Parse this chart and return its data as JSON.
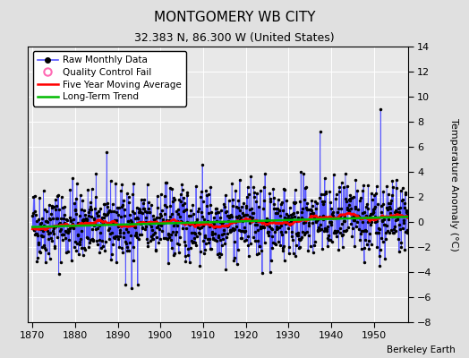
{
  "title": "MONTGOMERY WB CITY",
  "subtitle": "32.383 N, 86.300 W (United States)",
  "ylabel": "Temperature Anomaly (°C)",
  "credit": "Berkeley Earth",
  "xlim": [
    1869,
    1958
  ],
  "ylim": [
    -8,
    14
  ],
  "yticks": [
    -8,
    -6,
    -4,
    -2,
    0,
    2,
    4,
    6,
    8,
    10,
    12,
    14
  ],
  "xticks": [
    1870,
    1880,
    1890,
    1900,
    1910,
    1920,
    1930,
    1940,
    1950
  ],
  "start_year": 1870,
  "end_year": 1957,
  "outer_bg": "#e0e0e0",
  "plot_bg": "#e8e8e8",
  "grid_color": "#ffffff",
  "raw_line_color": "#5555ff",
  "raw_dot_color": "#000000",
  "moving_avg_color": "#ff0000",
  "trend_color": "#00bb00",
  "qc_fail_color": "#ff69b4",
  "seed": 42,
  "title_fontsize": 11,
  "subtitle_fontsize": 9,
  "tick_labelsize": 8,
  "ylabel_fontsize": 8,
  "legend_fontsize": 7.5,
  "credit_fontsize": 7.5
}
